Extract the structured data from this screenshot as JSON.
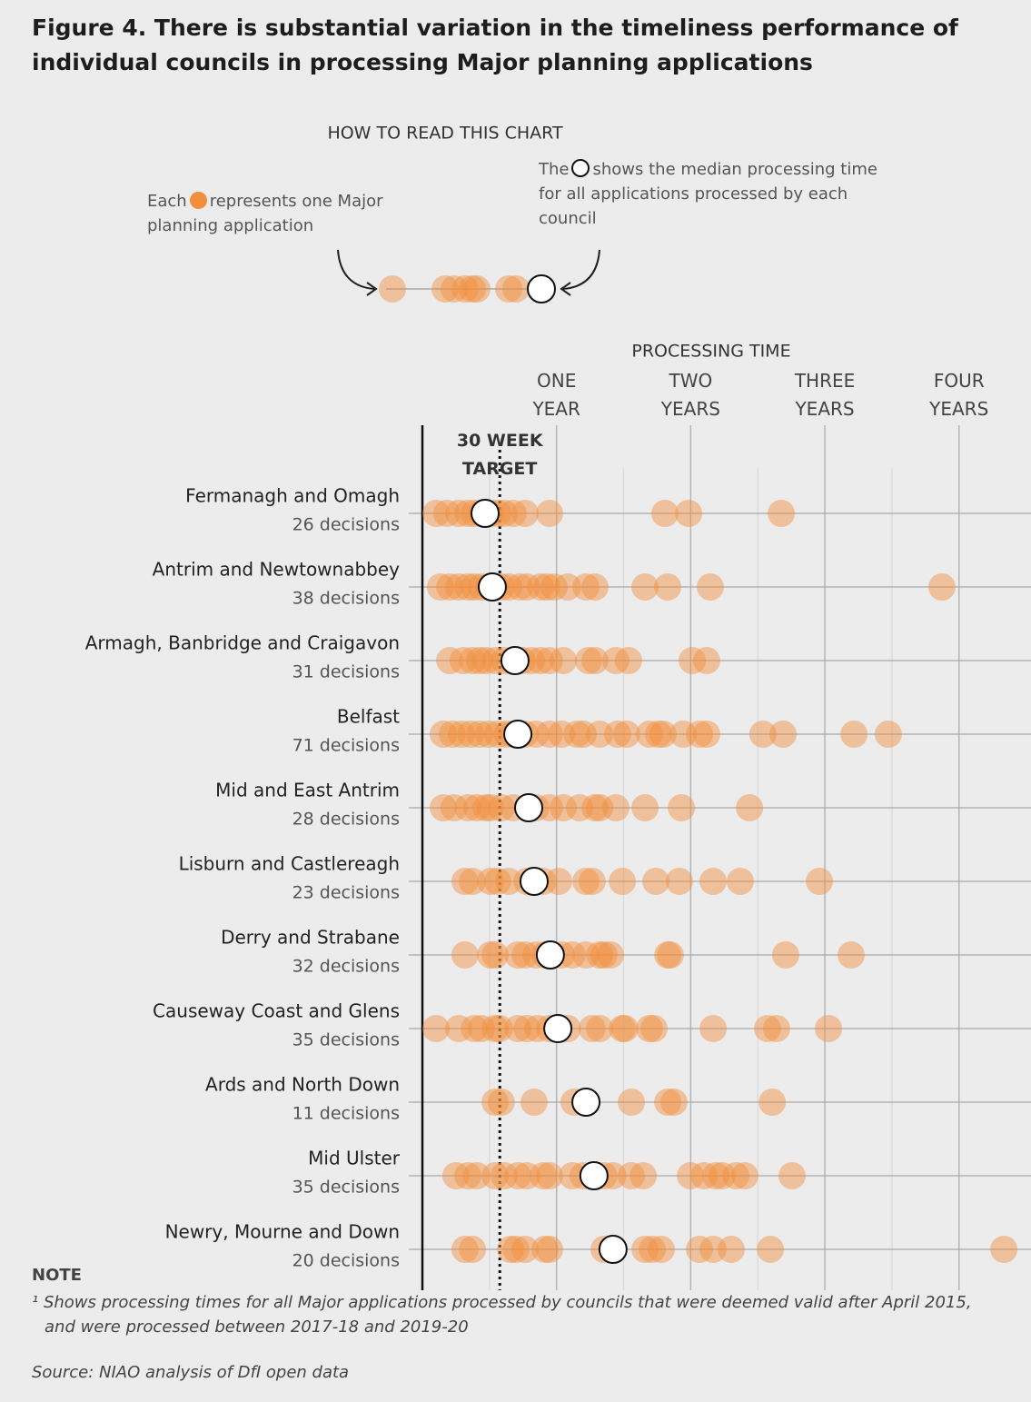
{
  "chart_data": {
    "type": "dotplot",
    "title": "Figure 4.  There is substantial variation in the timeliness performance of individual councils in processing Major planning applications",
    "legend": {
      "title": "HOW TO READ THIS CHART",
      "dot_before": "Each",
      "dot_after": "represents one Major planning application",
      "median_before": "The",
      "median_after": "shows the median processing time for all applications processed by each council"
    },
    "x_label": "PROCESSING TIME",
    "xlim": [
      0,
      236
    ],
    "xticks": [
      {
        "value": 52,
        "label": "ONE YEAR"
      },
      {
        "value": 104,
        "label": "TWO YEARS"
      },
      {
        "value": 156,
        "label": "THREE YEARS"
      },
      {
        "value": 208,
        "label": "FOUR YEARS"
      }
    ],
    "minor_xticks": [
      26,
      78,
      130,
      182
    ],
    "target": {
      "value": 30,
      "label": "30 WEEK TARGET"
    },
    "dot_color": "#f28e3c",
    "categories": [
      "Fermanagh and Omagh",
      "Antrim and Newtownabbey",
      "Armagh, Banbridge and Craigavon",
      "Belfast",
      "Mid and East Antrim",
      "Lisburn and Castlereagh",
      "Derry and Strabane",
      "Causeway Coast and Glens",
      "Ards and North Down",
      "Mid Ulster",
      "Newry, Mourne and Down"
    ],
    "decision_labels": [
      "26 decisions",
      "38 decisions",
      "31 decisions",
      "71 decisions",
      "28 decisions",
      "23 decisions",
      "32 decisions",
      "35 decisions",
      "11 decisions",
      "35 decisions",
      "20 decisions"
    ],
    "dots": [
      [
        5.3,
        9.5,
        14.1,
        17.6,
        20.1,
        22.9,
        26.4,
        29.2,
        31.7,
        35.2,
        39.8,
        49.3,
        94.0,
        103.2,
        139.1
      ],
      [
        7.0,
        10.6,
        14.1,
        17.6,
        20.1,
        22.9,
        25.7,
        28.2,
        30.6,
        33.5,
        37.7,
        40.5,
        45.8,
        48.2,
        51.1,
        56.3,
        63.4,
        66.9,
        86.3,
        95.1,
        111.6,
        201.4
      ],
      [
        10.6,
        15.8,
        19.4,
        22.2,
        24.6,
        28.2,
        31.7,
        38.7,
        42.3,
        45.8,
        49.3,
        54.6,
        64.4,
        66.9,
        75.0,
        79.9,
        104.6,
        110.2
      ],
      [
        8.1,
        11.6,
        15.1,
        18.7,
        22.2,
        25.7,
        29.2,
        32.7,
        35.2,
        39.8,
        44.0,
        49.3,
        53.9,
        59.9,
        62.3,
        68.7,
        75.7,
        79.2,
        88.0,
        91.5,
        93.3,
        101.1,
        107.4,
        110.2,
        132.0,
        139.8,
        167.3,
        180.6
      ],
      [
        8.1,
        12.3,
        17.6,
        21.1,
        24.6,
        26.4,
        30.6,
        35.2,
        44.0,
        49.3,
        54.6,
        60.9,
        66.9,
        68.7,
        75.0,
        86.3,
        100.4,
        126.8
      ],
      [
        16.5,
        19.4,
        26.4,
        29.2,
        33.5,
        40.5,
        46.8,
        52.8,
        63.4,
        65.8,
        77.5,
        90.5,
        99.6,
        112.7,
        123.2,
        153.9
      ],
      [
        16.5,
        26.4,
        28.2,
        37.0,
        39.8,
        44.0,
        47.5,
        53.9,
        58.1,
        63.4,
        68.7,
        70.4,
        72.9,
        95.1,
        96.1,
        140.8,
        166.2
      ],
      [
        5.3,
        14.1,
        20.1,
        22.9,
        28.2,
        29.9,
        37.0,
        40.5,
        44.7,
        49.3,
        56.3,
        65.8,
        68.7,
        77.5,
        78.5,
        88.0,
        89.8,
        112.7,
        133.8,
        137.3,
        157.4
      ],
      [
        28.2,
        30.6,
        43.3,
        58.8,
        63.4,
        81.0,
        95.1,
        97.5,
        135.6
      ],
      [
        13.0,
        17.6,
        21.1,
        28.2,
        31.7,
        37.0,
        40.5,
        46.8,
        49.3,
        58.1,
        62.3,
        70.4,
        73.9,
        81.0,
        85.6,
        103.9,
        109.2,
        113.7,
        116.2,
        121.5,
        125.0,
        143.3
      ],
      [
        16.5,
        19.4,
        34.2,
        36.3,
        39.8,
        47.5,
        49.3,
        70.4,
        86.3,
        89.1,
        92.6,
        107.4,
        112.7,
        119.7,
        134.9,
        225.4
      ]
    ],
    "medians": [
      24.3,
      27.1,
      35.9,
      37.0,
      41.2,
      43.3,
      49.6,
      52.5,
      63.4,
      66.5,
      73.9
    ],
    "note_title": "NOTE",
    "note": "¹ Shows processing times for all Major applications processed by councils that were deemed valid after April 2015, and were processed between 2017-18 and 2019-20",
    "source": "Source: NIAO analysis of DfI open data"
  }
}
